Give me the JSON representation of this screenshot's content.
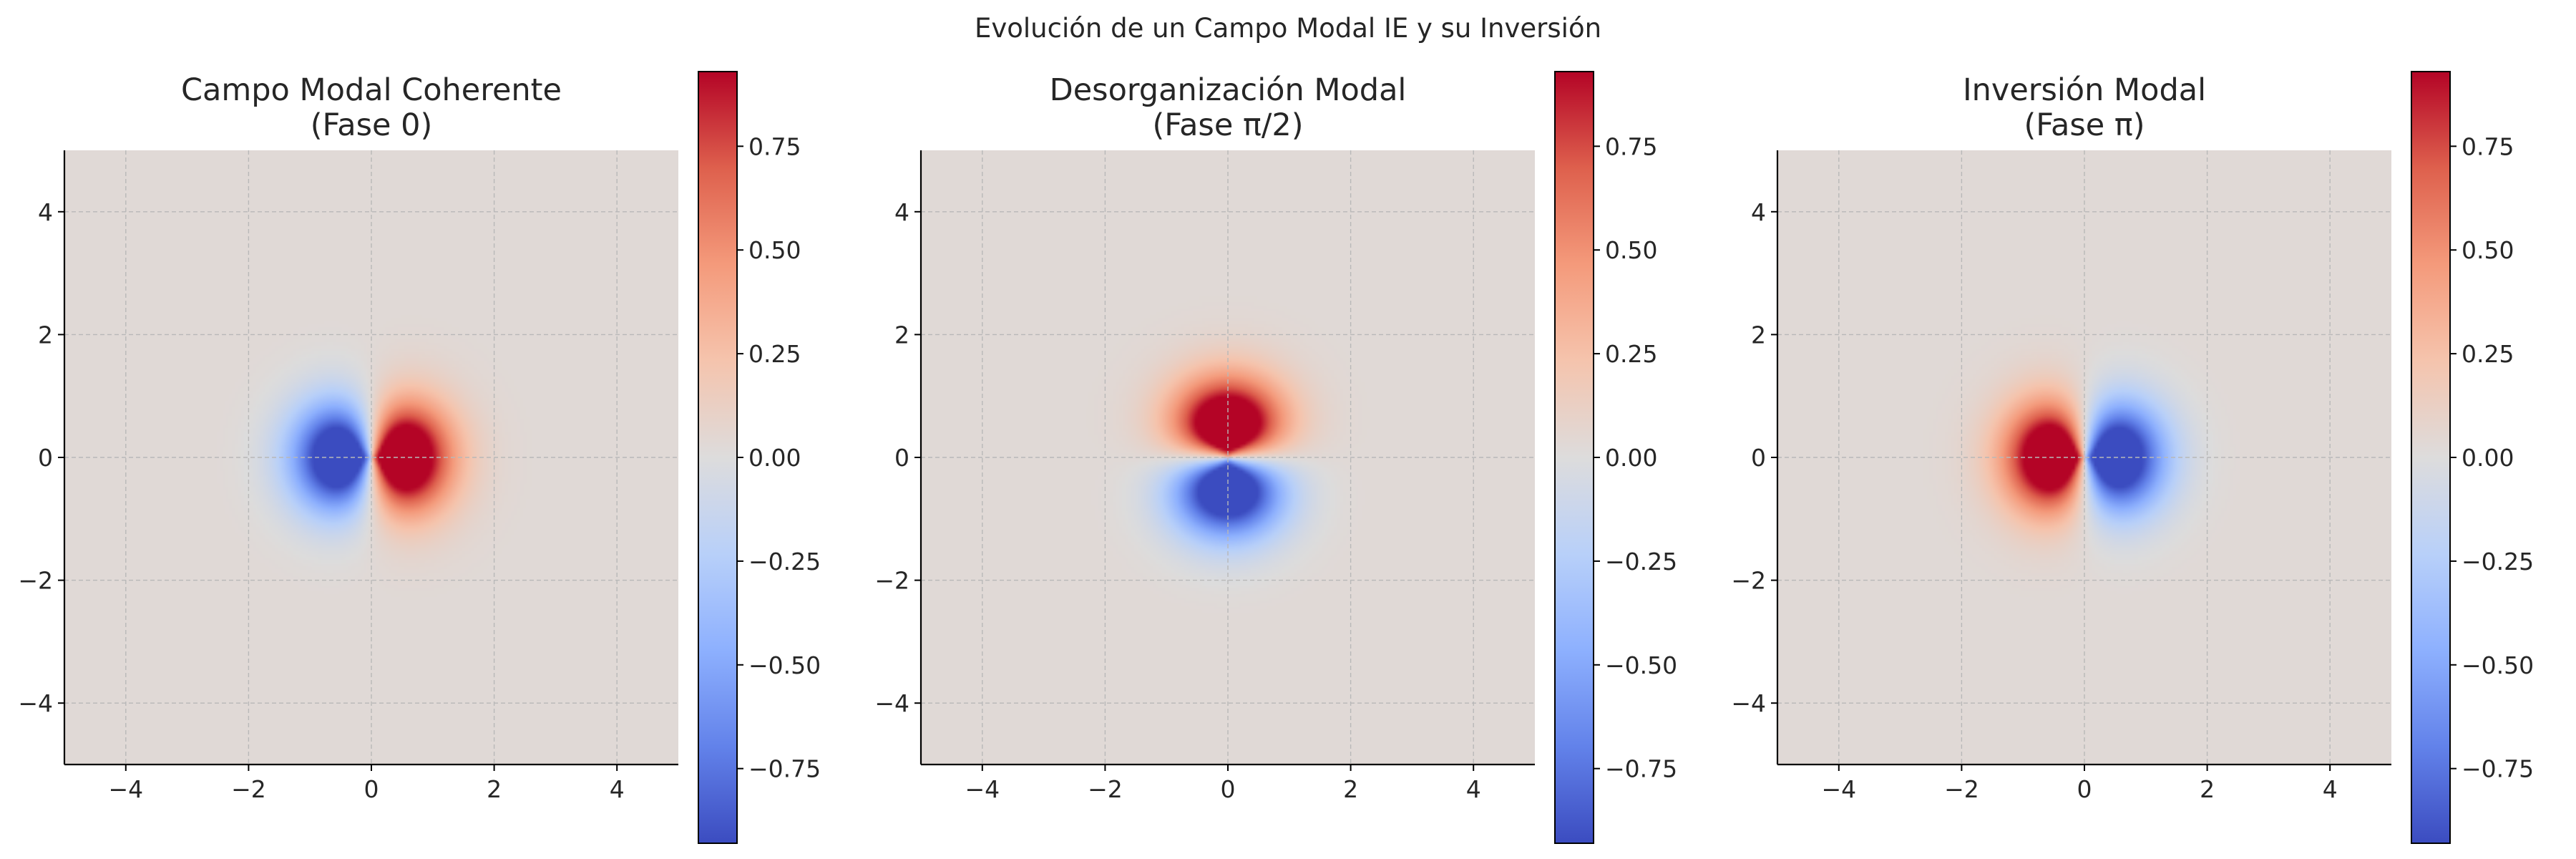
{
  "figure": {
    "suptitle": "Evolución de un Campo Modal IE y su Inversión"
  },
  "chart_data": [
    {
      "type": "heatmap",
      "title_line1": "Campo Modal Coherente",
      "title_line2": "(Fase 0)",
      "xlim": [
        -5,
        5
      ],
      "ylim": [
        -5,
        5
      ],
      "xticks": [
        -4,
        -2,
        0,
        2,
        4
      ],
      "yticks": [
        -4,
        -2,
        0,
        2,
        4
      ],
      "grid": true,
      "colormap": "coolwarm",
      "value_range": [
        -0.93,
        0.93
      ],
      "field": {
        "form": "dipole",
        "phase": 0,
        "orientation_deg": 0,
        "peak_positive_at": [
          0.3,
          0
        ],
        "peak_negative_at": [
          -0.3,
          0
        ]
      },
      "colorbar": {
        "ticks": [
          0.75,
          0.5,
          0.25,
          0.0,
          -0.25,
          -0.5,
          -0.75
        ],
        "tick_labels": [
          "0.75",
          "0.50",
          "0.25",
          "0.00",
          "−0.25",
          "−0.50",
          "−0.75"
        ]
      }
    },
    {
      "type": "heatmap",
      "title_line1": "Desorganización Modal",
      "title_line2": "(Fase π/2)",
      "xlim": [
        -5,
        5
      ],
      "ylim": [
        -5,
        5
      ],
      "xticks": [
        -4,
        -2,
        0,
        2,
        4
      ],
      "yticks": [
        -4,
        -2,
        0,
        2,
        4
      ],
      "grid": true,
      "colormap": "coolwarm",
      "value_range": [
        -0.93,
        0.93
      ],
      "field": {
        "form": "dipole",
        "phase": "π/2",
        "orientation_deg": 90,
        "peak_positive_at": [
          0,
          0.3
        ],
        "peak_negative_at": [
          0,
          -0.3
        ]
      },
      "colorbar": {
        "ticks": [
          0.75,
          0.5,
          0.25,
          0.0,
          -0.25,
          -0.5,
          -0.75
        ],
        "tick_labels": [
          "0.75",
          "0.50",
          "0.25",
          "0.00",
          "−0.25",
          "−0.50",
          "−0.75"
        ]
      }
    },
    {
      "type": "heatmap",
      "title_line1": "Inversión Modal",
      "title_line2": "(Fase π)",
      "xlim": [
        -5,
        5
      ],
      "ylim": [
        -5,
        5
      ],
      "xticks": [
        -4,
        -2,
        0,
        2,
        4
      ],
      "yticks": [
        -4,
        -2,
        0,
        2,
        4
      ],
      "grid": true,
      "colormap": "coolwarm",
      "value_range": [
        -0.93,
        0.93
      ],
      "field": {
        "form": "dipole",
        "phase": "π",
        "orientation_deg": 180,
        "peak_positive_at": [
          -0.3,
          0
        ],
        "peak_negative_at": [
          0.3,
          0
        ]
      },
      "colorbar": {
        "ticks": [
          0.75,
          0.5,
          0.25,
          0.0,
          -0.25,
          -0.5,
          -0.75
        ],
        "tick_labels": [
          "0.75",
          "0.50",
          "0.25",
          "0.00",
          "−0.25",
          "−0.50",
          "−0.75"
        ]
      }
    }
  ]
}
